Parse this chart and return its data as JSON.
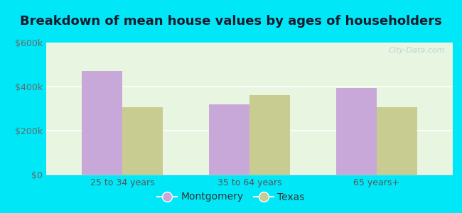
{
  "title": "Breakdown of mean house values by ages of householders",
  "categories": [
    "25 to 34 years",
    "35 to 64 years",
    "65 years+"
  ],
  "montgomery_values": [
    470000,
    320000,
    395000
  ],
  "texas_values": [
    305000,
    360000,
    305000
  ],
  "montgomery_color": "#c8a8d8",
  "texas_color": "#c8cc90",
  "ylim": [
    0,
    600000
  ],
  "yticks": [
    0,
    200000,
    400000,
    600000
  ],
  "ytick_labels": [
    "$0",
    "$200k",
    "$400k",
    "$600k"
  ],
  "background_outer": "#00e8f8",
  "background_inner_top": "#e8f5e0",
  "background_inner_bot": "#f5fff5",
  "legend_labels": [
    "Montgomery",
    "Texas"
  ],
  "bar_width": 0.32,
  "title_fontsize": 13,
  "tick_fontsize": 9,
  "legend_fontsize": 10
}
